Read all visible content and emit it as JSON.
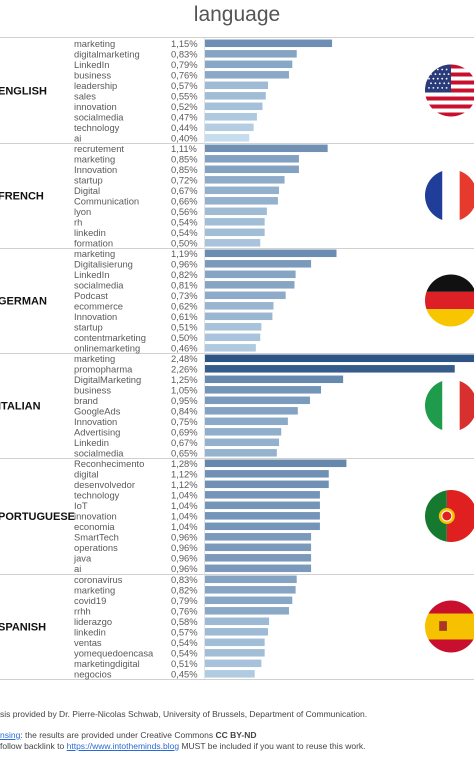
{
  "title": "language",
  "chart_data": {
    "type": "bar",
    "orientation": "horizontal",
    "title": "language",
    "groups": [
      {
        "name": "ENGLISH",
        "flag": "us-flag",
        "categories": [
          "marketing",
          "digitalmarketing",
          "LinkedIn",
          "business",
          "leadership",
          "sales",
          "innovation",
          "socialmedia",
          "technology",
          "ai"
        ],
        "values": [
          1.15,
          0.83,
          0.79,
          0.76,
          0.57,
          0.55,
          0.52,
          0.47,
          0.44,
          0.4
        ],
        "labels": [
          "1,15%",
          "0,83%",
          "0,79%",
          "0,76%",
          "0,57%",
          "0,55%",
          "0,52%",
          "0,47%",
          "0,44%",
          "0,40%"
        ]
      },
      {
        "name": "FRENCH",
        "flag": "france-flag",
        "categories": [
          "recrutement",
          "marketing",
          "Innovation",
          "startup",
          "Digital",
          "Communication",
          "lyon",
          "rh",
          "linkedin",
          "formation"
        ],
        "values": [
          1.11,
          0.85,
          0.85,
          0.72,
          0.67,
          0.66,
          0.56,
          0.54,
          0.54,
          0.5
        ],
        "labels": [
          "1,11%",
          "0,85%",
          "0,85%",
          "0,72%",
          "0,67%",
          "0,66%",
          "0,56%",
          "0,54%",
          "0,54%",
          "0,50%"
        ]
      },
      {
        "name": "GERMAN",
        "flag": "germany-flag",
        "categories": [
          "marketing",
          "Digitalisierung",
          "LinkedIn",
          "socialmedia",
          "Podcast",
          "ecommerce",
          "Innovation",
          "startup",
          "contentmarketing",
          "onlinemarketing"
        ],
        "values": [
          1.19,
          0.96,
          0.82,
          0.81,
          0.73,
          0.62,
          0.61,
          0.51,
          0.5,
          0.46
        ],
        "labels": [
          "1,19%",
          "0,96%",
          "0,82%",
          "0,81%",
          "0,73%",
          "0,62%",
          "0,61%",
          "0,51%",
          "0,50%",
          "0,46%"
        ]
      },
      {
        "name": "ITALIAN",
        "flag": "italy-flag",
        "categories": [
          "marketing",
          "promopharma",
          "DigitalMarketing",
          "business",
          "brand",
          "GoogleAds",
          "Innovation",
          "Advertising",
          "Linkedin",
          "socialmedia"
        ],
        "values": [
          2.48,
          2.26,
          1.25,
          1.05,
          0.95,
          0.84,
          0.75,
          0.69,
          0.67,
          0.65
        ],
        "labels": [
          "2,48%",
          "2,26%",
          "1,25%",
          "1,05%",
          "0,95%",
          "0,84%",
          "0,75%",
          "0,69%",
          "0,67%",
          "0,65%"
        ]
      },
      {
        "name": "PORTUGUESE",
        "flag": "portugal-flag",
        "categories": [
          "Reconhecimento",
          "digital",
          "desenvolvedor",
          "technology",
          "IoT",
          "innovation",
          "economia",
          "SmartTech",
          "operations",
          "java",
          "ai"
        ],
        "values": [
          1.28,
          1.12,
          1.12,
          1.04,
          1.04,
          1.04,
          1.04,
          0.96,
          0.96,
          0.96,
          0.96
        ],
        "labels": [
          "1,28%",
          "1,12%",
          "1,12%",
          "1,04%",
          "1,04%",
          "1,04%",
          "1,04%",
          "0,96%",
          "0,96%",
          "0,96%",
          "0,96%"
        ]
      },
      {
        "name": "SPANISH",
        "flag": "spain-flag",
        "categories": [
          "coronavirus",
          "marketing",
          "covid19",
          "rrhh",
          "liderazgo",
          "linkedin",
          "ventas",
          "yomequedoencasa",
          "marketingdigital",
          "negocios"
        ],
        "values": [
          0.83,
          0.82,
          0.79,
          0.76,
          0.58,
          0.57,
          0.54,
          0.54,
          0.51,
          0.45
        ],
        "labels": [
          "0,83%",
          "0,82%",
          "0,79%",
          "0,76%",
          "0,58%",
          "0,57%",
          "0,54%",
          "0,54%",
          "0,51%",
          "0,45%"
        ]
      }
    ],
    "value_unit": "%",
    "grid": false,
    "legend": "none",
    "colors": {
      "dark": "#2c5485",
      "light": "#c5ddef"
    }
  },
  "footer": {
    "line1": "sis provided by Dr. Pierre-Nicolas Schwab, University of Brussels, Department of Communication.",
    "line2_link": "nsing",
    "line2_text": ": the results are provided under Creative Commons ",
    "line2_bold": "CC BY-ND",
    "line3_text_a": "follow backlink to ",
    "line3_link": "https://www.intotheminds.blog",
    "line3_text_b": " MUST be included if you want to reuse this work."
  }
}
